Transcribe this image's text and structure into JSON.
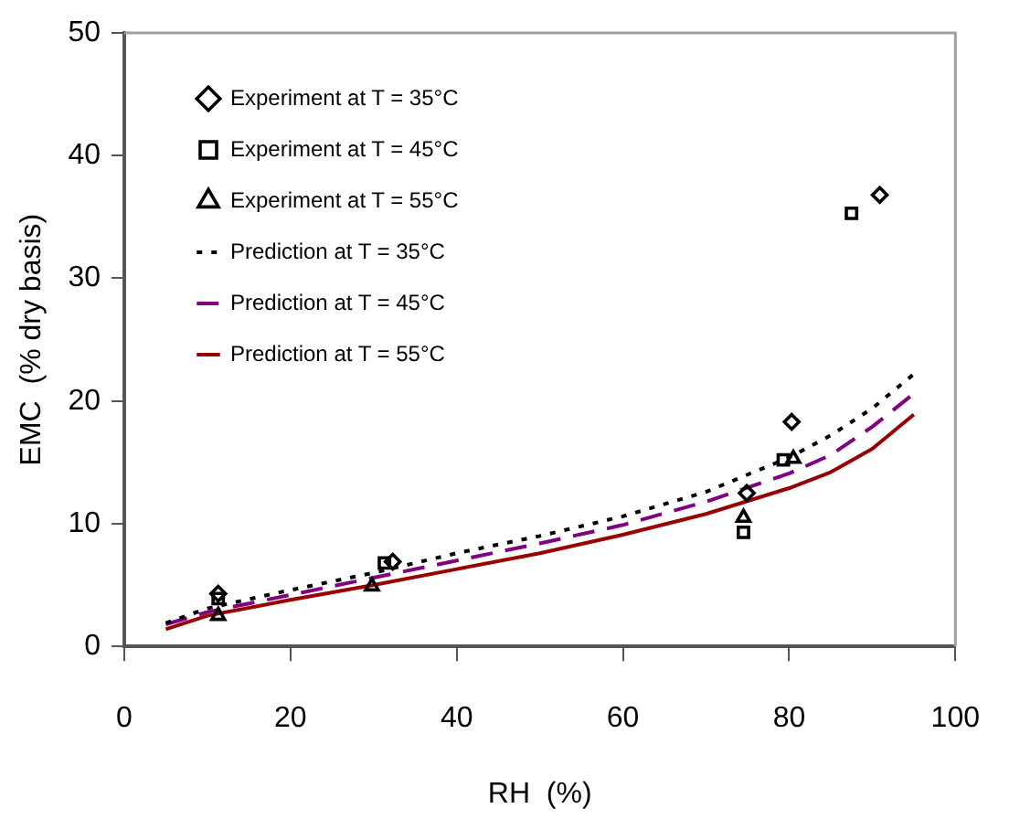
{
  "chart_data": {
    "type": "scatter",
    "xlabel": "RH  (%)",
    "ylabel": "EMC  (% dry basis)",
    "xlim": [
      0,
      100
    ],
    "ylim": [
      0,
      50
    ],
    "xticks": [
      0,
      20,
      40,
      60,
      80,
      100
    ],
    "yticks": [
      0,
      10,
      20,
      30,
      40,
      50
    ],
    "grid": false,
    "legend": "top left",
    "series": [
      {
        "name": "Experiment at T = 35°C",
        "type": "scatter",
        "marker": "diamond",
        "color": "#000000",
        "x": [
          11.3,
          32.3,
          74.9,
          80.3,
          90.9
        ],
        "values": [
          4.3,
          6.9,
          12.5,
          18.3,
          36.8
        ]
      },
      {
        "name": "Experiment at T = 45°C",
        "type": "scatter",
        "marker": "square",
        "color": "#000000",
        "x": [
          11.3,
          31.3,
          74.5,
          79.3,
          87.5
        ],
        "values": [
          3.9,
          6.8,
          9.3,
          15.2,
          35.3
        ]
      },
      {
        "name": "Experiment at T = 55°C",
        "type": "scatter",
        "marker": "triangle",
        "color": "#000000",
        "x": [
          11.3,
          29.8,
          74.5,
          80.5
        ],
        "values": [
          2.5,
          4.9,
          10.5,
          15.3
        ]
      },
      {
        "name": "Prediction at T = 35°C",
        "type": "line",
        "line_style": "dotted",
        "color": "#000000",
        "x": [
          5,
          10,
          20,
          30,
          40,
          50,
          60,
          70,
          80,
          85,
          90,
          95
        ],
        "values": [
          1.9,
          3.1,
          4.6,
          6.0,
          7.6,
          9.0,
          10.6,
          12.6,
          15.4,
          17.2,
          19.4,
          22.2
        ]
      },
      {
        "name": "Prediction at T = 45°C",
        "type": "line",
        "line_style": "dashed",
        "color": "#800080",
        "x": [
          5,
          10,
          20,
          30,
          40,
          50,
          60,
          70,
          80,
          85,
          90,
          95
        ],
        "values": [
          1.8,
          2.8,
          4.2,
          5.6,
          7.0,
          8.4,
          9.9,
          11.8,
          14.1,
          15.6,
          17.9,
          20.6
        ]
      },
      {
        "name": "Prediction at T = 55°C",
        "type": "line",
        "line_style": "solid",
        "color": "#990000",
        "x": [
          5,
          10,
          20,
          30,
          40,
          50,
          60,
          70,
          80,
          85,
          90,
          95
        ],
        "values": [
          1.4,
          2.5,
          3.8,
          5.0,
          6.3,
          7.6,
          9.1,
          10.8,
          12.9,
          14.2,
          16.1,
          18.9
        ]
      }
    ]
  }
}
